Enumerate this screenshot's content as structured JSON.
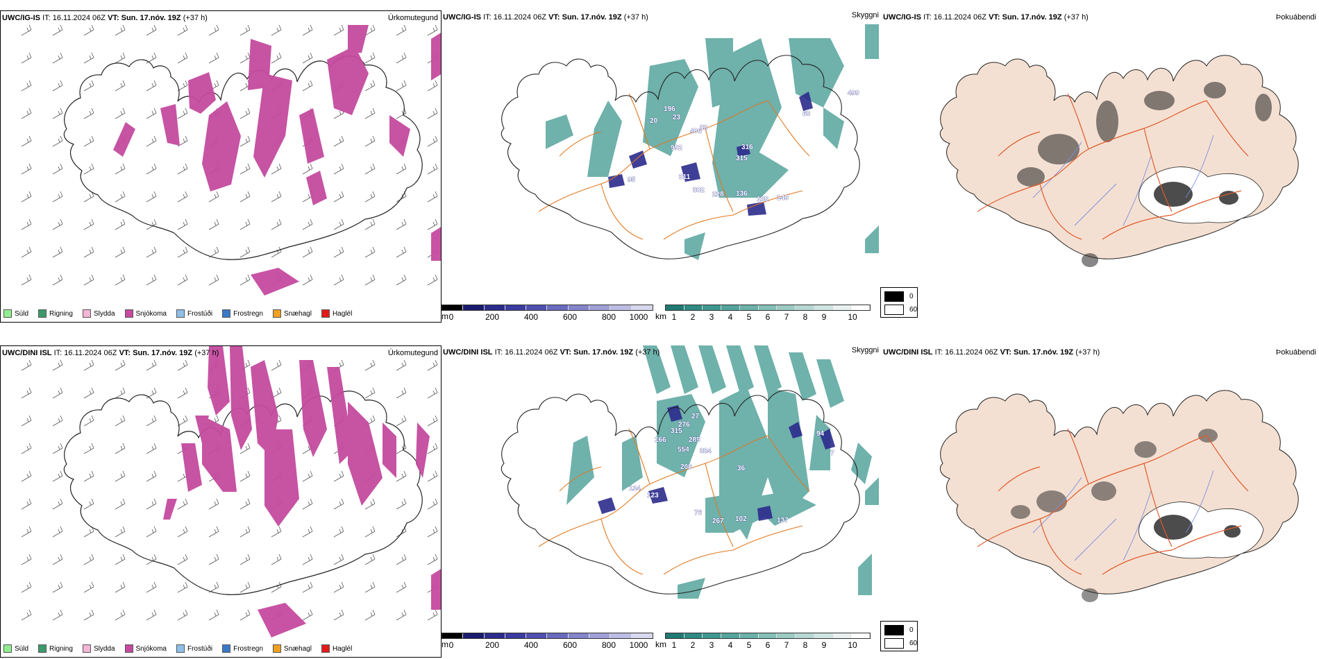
{
  "rows": [
    {
      "model": "UWC/IG-IS",
      "it_label": "IT:",
      "it_value": "16.11.2024 06Z",
      "vt_label": "VT:",
      "vt_value": "Sun. 17.nóv. 19Z",
      "lead": "(+37 h)"
    },
    {
      "model": "UWC/DINI ISL",
      "it_label": "IT:",
      "it_value": "16.11.2024 06Z",
      "vt_label": "VT:",
      "vt_value": "Sun. 17.nóv. 19Z",
      "lead": "(+37 h)"
    }
  ],
  "panels": {
    "precip_title": "Úrkomutegund",
    "vis_title": "Skyggni",
    "fog_title": "Þokuábendi"
  },
  "precip_legend": [
    {
      "label": "Súld",
      "color": "#90ee90"
    },
    {
      "label": "Rigning",
      "color": "#3c9a6a"
    },
    {
      "label": "Slydda",
      "color": "#f4b6d6"
    },
    {
      "label": "Snjókoma",
      "color": "#c54a9f"
    },
    {
      "label": "Frostúði",
      "color": "#8fbfe8"
    },
    {
      "label": "Frostregn",
      "color": "#3a78c8"
    },
    {
      "label": "Snæhagl",
      "color": "#f0a020"
    },
    {
      "label": "Haglél",
      "color": "#e41a1a"
    }
  ],
  "ceiling_scale": {
    "unit": "m",
    "ticks": [
      "0",
      "200",
      "400",
      "600",
      "800",
      "1000"
    ],
    "colors": [
      "#000000",
      "#1a1a6e",
      "#2b2b8c",
      "#3b3ba0",
      "#4f4fb0",
      "#6a6abf",
      "#8585cc",
      "#a0a0d8",
      "#bcbce4",
      "#d8d8f0"
    ]
  },
  "visibility_scale": {
    "unit": "km",
    "ticks": [
      "1",
      "2",
      "3",
      "4",
      "5",
      "6",
      "7",
      "8",
      "9",
      "10"
    ],
    "colors": [
      "#1f7a74",
      "#2e8a83",
      "#3f9890",
      "#54a59d",
      "#6bb2aa",
      "#84bfb8",
      "#9ccbc5",
      "#b6d8d3",
      "#cfe5e1",
      "#e8f2f0",
      "#ffffff"
    ]
  },
  "fog_legend": {
    "low": "0",
    "high": "60",
    "low_color": "#000000",
    "high_color": "#ffffff"
  },
  "ceiling_values": [
    [
      "499",
      "196",
      "23",
      "406",
      "20",
      "316",
      "315",
      "992",
      "95",
      "311",
      "302",
      "228",
      "136",
      "188",
      "148",
      "68",
      "38"
    ],
    [
      "276",
      "315",
      "27",
      "285",
      "554",
      "384",
      "166",
      "208",
      "36",
      "134",
      "123",
      "76",
      "267",
      "102",
      "137",
      "94",
      "7"
    ]
  ]
}
